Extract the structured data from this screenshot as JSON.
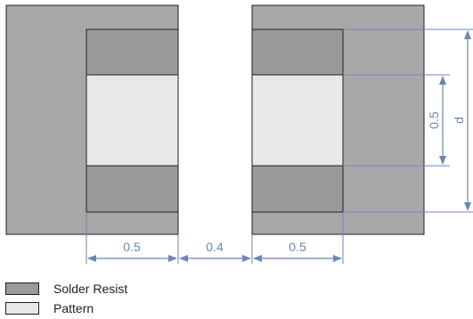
{
  "colors": {
    "outer_pad": "#a8a8a8",
    "solder_resist": "#9a9a9a",
    "pattern": "#e8e8e8",
    "outline": "#1f1f1f",
    "dimension": "#6b87b8"
  },
  "dimensions": {
    "left_pad_width": "0.5",
    "gap": "0.4",
    "right_pad_width": "0.5",
    "pattern_height": "0.5",
    "total_height": "d"
  },
  "legend": {
    "solder_resist": "Solder Resist",
    "pattern": "Pattern"
  }
}
